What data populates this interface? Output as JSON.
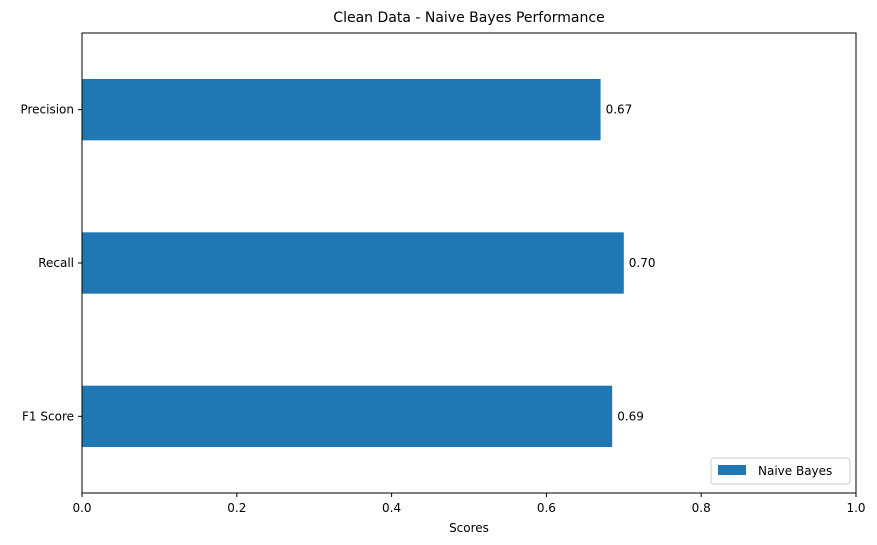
{
  "chart_data": {
    "type": "bar",
    "orientation": "horizontal",
    "title": "Clean Data - Naive Bayes Performance",
    "xlabel": "Scores",
    "ylabel": "",
    "xlim": [
      0,
      1
    ],
    "xticks": [
      0.0,
      0.2,
      0.4,
      0.6,
      0.8,
      1.0
    ],
    "xtick_labels": [
      "0.0",
      "0.2",
      "0.4",
      "0.6",
      "0.8",
      "1.0"
    ],
    "categories": [
      "Precision",
      "Recall",
      "F1 Score"
    ],
    "series": [
      {
        "name": "Naive Bayes",
        "color": "#1f77b4",
        "values": [
          0.67,
          0.7,
          0.685
        ],
        "value_labels": [
          "0.67",
          "0.70",
          "0.69"
        ]
      }
    ],
    "grid": false,
    "legend_position": "bottom-right"
  }
}
